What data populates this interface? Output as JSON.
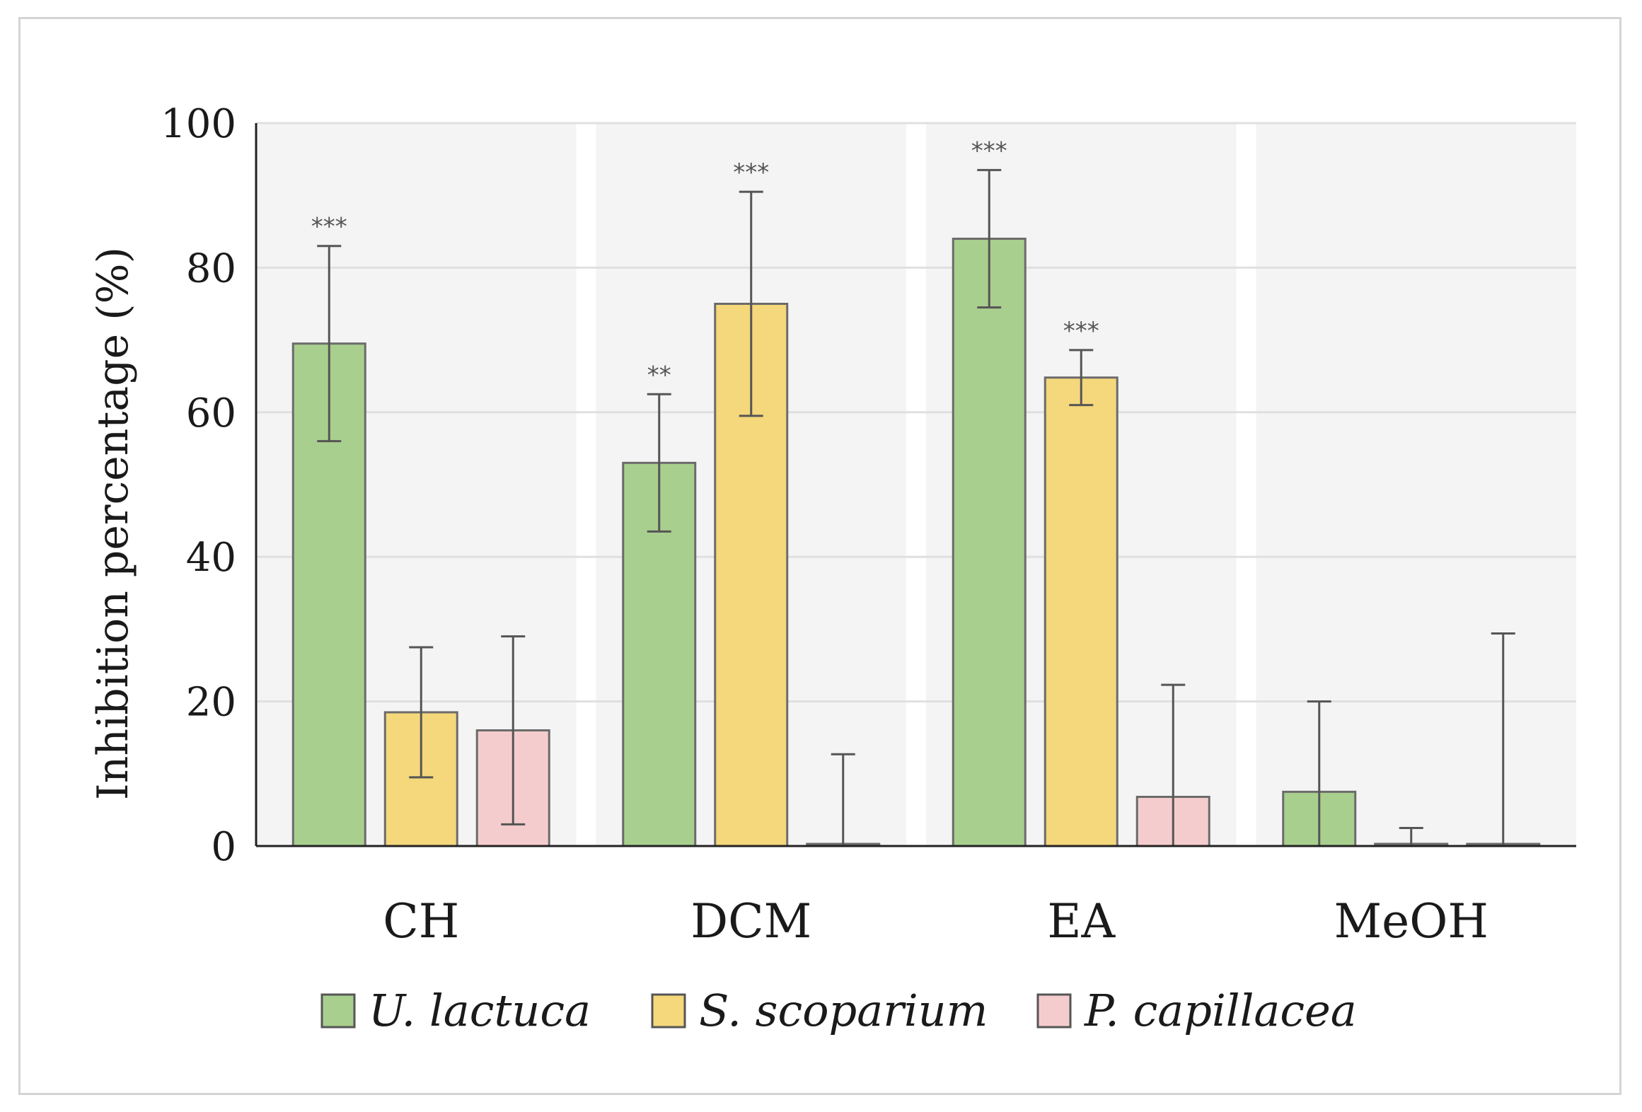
{
  "chart_data": {
    "type": "bar",
    "title": "",
    "xlabel": "",
    "ylabel": "Inhibition percentage (%)",
    "ylim": [
      0,
      100
    ],
    "yticks": [
      0,
      20,
      40,
      60,
      80,
      100
    ],
    "grid": true,
    "legend_position": "bottom",
    "categories": [
      "CH",
      "DCM",
      "EA",
      "MeOH"
    ],
    "series": [
      {
        "name": "U. lactuca",
        "color": "#a9cf8e",
        "values": [
          69.5,
          53,
          84,
          7.5
        ],
        "errors": [
          13.5,
          9.5,
          9.5,
          12.5
        ],
        "significance": [
          "***",
          "**",
          "***",
          ""
        ]
      },
      {
        "name": "S. scoparium",
        "color": "#f5d77c",
        "values": [
          18.5,
          75,
          64.8,
          0.3
        ],
        "errors": [
          9,
          15.5,
          3.8,
          2.2
        ],
        "significance": [
          "",
          "***",
          "***",
          ""
        ]
      },
      {
        "name": "P. capillacea",
        "color": "#f5cccd",
        "values": [
          16,
          0.2,
          6.8,
          0.2
        ],
        "errors": [
          13,
          12.5,
          15.5,
          29.2
        ],
        "significance": [
          "",
          "",
          "",
          ""
        ]
      }
    ]
  }
}
